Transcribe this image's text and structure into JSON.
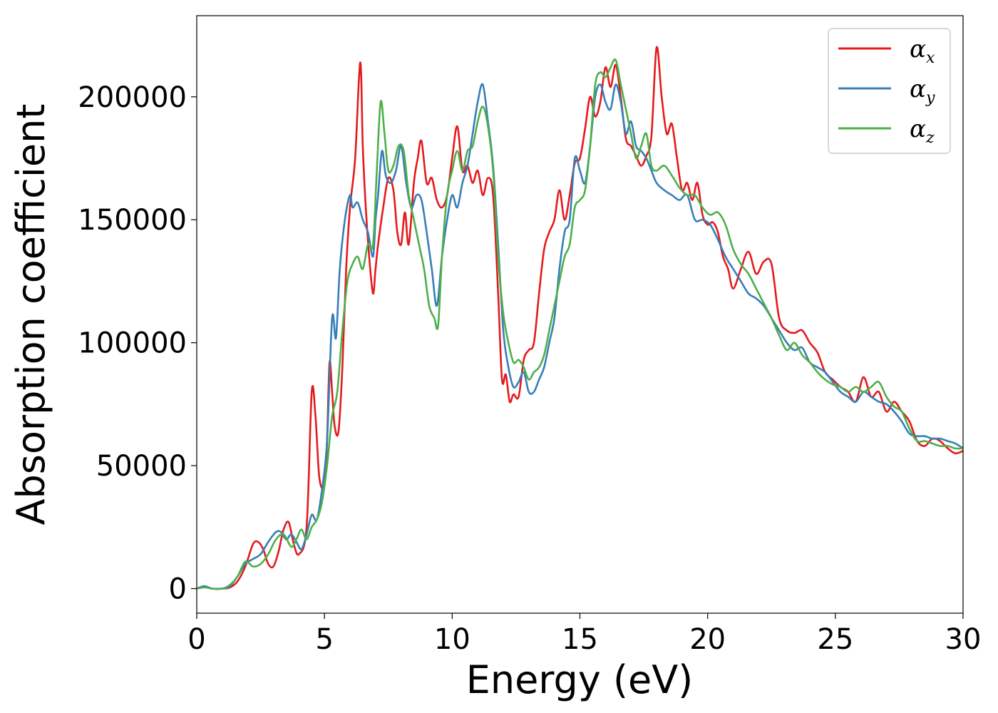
{
  "chart_data": {
    "type": "line",
    "xlabel": "Energy (eV)",
    "ylabel": "Absorption coefficient",
    "xlim": [
      0,
      30
    ],
    "ylim": [
      -10000,
      233000
    ],
    "xticks": [
      0,
      5,
      10,
      15,
      20,
      25,
      30
    ],
    "yticks": [
      0,
      50000,
      100000,
      150000,
      200000
    ],
    "grid": false,
    "legend_position": "top-right",
    "series": [
      {
        "name": "α",
        "subscript": "x",
        "color": "#e41a1c",
        "x": [
          0,
          0.3,
          0.6,
          1.0,
          1.3,
          1.6,
          1.9,
          2.2,
          2.4,
          2.6,
          2.8,
          3.0,
          3.2,
          3.4,
          3.6,
          3.8,
          4.0,
          4.3,
          4.5,
          4.65,
          4.8,
          5.0,
          5.1,
          5.2,
          5.3,
          5.4,
          5.55,
          5.7,
          5.85,
          6.0,
          6.2,
          6.4,
          6.5,
          6.6,
          6.75,
          6.9,
          7.0,
          7.1,
          7.3,
          7.5,
          7.7,
          7.85,
          8.0,
          8.15,
          8.3,
          8.5,
          8.65,
          8.8,
          9.0,
          9.2,
          9.4,
          9.6,
          9.8,
          10.0,
          10.2,
          10.4,
          10.6,
          10.8,
          11.0,
          11.2,
          11.4,
          11.6,
          11.8,
          11.95,
          12.1,
          12.25,
          12.4,
          12.6,
          12.8,
          13.0,
          13.2,
          13.4,
          13.6,
          13.8,
          14.0,
          14.2,
          14.4,
          14.6,
          14.8,
          15.0,
          15.2,
          15.4,
          15.6,
          15.8,
          16.0,
          16.2,
          16.4,
          16.6,
          16.8,
          17.0,
          17.2,
          17.4,
          17.6,
          17.8,
          18.0,
          18.2,
          18.4,
          18.6,
          18.8,
          19.0,
          19.2,
          19.4,
          19.6,
          19.8,
          20.0,
          20.2,
          20.4,
          20.6,
          20.8,
          21.0,
          21.3,
          21.6,
          21.9,
          22.2,
          22.5,
          22.8,
          23.1,
          23.4,
          23.7,
          24.0,
          24.3,
          24.6,
          24.9,
          25.2,
          25.5,
          25.8,
          26.1,
          26.4,
          26.7,
          27.0,
          27.3,
          27.6,
          27.9,
          28.2,
          28.5,
          28.8,
          29.1,
          29.4,
          29.7,
          30.0
        ],
        "values": [
          0,
          800,
          0,
          0,
          500,
          3000,
          9000,
          18000,
          19000,
          16000,
          10000,
          9000,
          15000,
          24000,
          27000,
          18000,
          14000,
          25000,
          80000,
          70000,
          45000,
          42000,
          60000,
          92000,
          80000,
          66000,
          64000,
          90000,
          130000,
          155000,
          175000,
          214000,
          180000,
          158000,
          135000,
          120000,
          130000,
          140000,
          155000,
          167000,
          162000,
          145000,
          140000,
          153000,
          140000,
          165000,
          175000,
          182000,
          165000,
          167000,
          158000,
          155000,
          160000,
          175000,
          188000,
          170000,
          172000,
          165000,
          170000,
          160000,
          167000,
          160000,
          120000,
          85000,
          87000,
          76000,
          79000,
          78000,
          93000,
          97000,
          100000,
          120000,
          138000,
          145000,
          150000,
          162000,
          150000,
          160000,
          173000,
          175000,
          187000,
          200000,
          192000,
          198000,
          212000,
          204000,
          213000,
          200000,
          183000,
          180000,
          176000,
          172000,
          176000,
          184000,
          220000,
          200000,
          185000,
          189000,
          175000,
          162000,
          165000,
          158000,
          165000,
          152000,
          148000,
          149000,
          145000,
          135000,
          130000,
          122000,
          130000,
          137000,
          128000,
          133000,
          132000,
          110000,
          105000,
          104000,
          105000,
          100000,
          96000,
          88000,
          85000,
          82000,
          80000,
          76000,
          86000,
          78000,
          80000,
          72000,
          76000,
          72000,
          68000,
          60000,
          58000,
          61000,
          60000,
          57000,
          55000,
          56000
        ]
      },
      {
        "name": "α",
        "subscript": "y",
        "color": "#377eb8",
        "x": [
          0,
          0.3,
          0.6,
          1.0,
          1.3,
          1.6,
          1.9,
          2.2,
          2.5,
          2.8,
          3.1,
          3.3,
          3.5,
          3.7,
          3.9,
          4.1,
          4.3,
          4.5,
          4.7,
          4.9,
          5.1,
          5.3,
          5.45,
          5.6,
          5.8,
          6.0,
          6.1,
          6.3,
          6.5,
          6.7,
          6.9,
          7.0,
          7.1,
          7.25,
          7.4,
          7.6,
          7.8,
          8.0,
          8.2,
          8.4,
          8.6,
          8.8,
          9.0,
          9.2,
          9.4,
          9.6,
          9.8,
          10.0,
          10.2,
          10.4,
          10.6,
          10.8,
          11.0,
          11.2,
          11.4,
          11.6,
          11.8,
          12.0,
          12.2,
          12.4,
          12.6,
          12.8,
          13.0,
          13.2,
          13.4,
          13.6,
          13.8,
          14.0,
          14.2,
          14.4,
          14.6,
          14.8,
          15.0,
          15.2,
          15.4,
          15.6,
          15.8,
          16.0,
          16.2,
          16.4,
          16.6,
          16.8,
          17.0,
          17.2,
          17.4,
          17.6,
          17.8,
          18.0,
          18.3,
          18.6,
          18.9,
          19.2,
          19.5,
          19.8,
          20.1,
          20.4,
          20.7,
          21.0,
          21.3,
          21.6,
          21.9,
          22.2,
          22.5,
          22.8,
          23.1,
          23.4,
          23.7,
          24.0,
          24.3,
          24.6,
          24.9,
          25.2,
          25.5,
          25.8,
          26.1,
          26.4,
          26.7,
          27.0,
          27.3,
          27.6,
          27.9,
          28.2,
          28.5,
          28.8,
          29.1,
          29.4,
          29.7,
          30.0
        ],
        "values": [
          0,
          1000,
          0,
          0,
          1000,
          5000,
          10000,
          12000,
          14000,
          19000,
          23000,
          23000,
          20000,
          22000,
          19000,
          16000,
          22000,
          30000,
          28000,
          40000,
          60000,
          110000,
          102000,
          130000,
          150000,
          160000,
          155000,
          157000,
          150000,
          145000,
          135000,
          150000,
          160000,
          178000,
          168000,
          165000,
          170000,
          180000,
          165000,
          155000,
          160000,
          158000,
          145000,
          130000,
          115000,
          135000,
          150000,
          160000,
          155000,
          165000,
          172000,
          185000,
          198000,
          205000,
          190000,
          172000,
          140000,
          105000,
          90000,
          82000,
          84000,
          88000,
          80000,
          80000,
          85000,
          90000,
          100000,
          110000,
          130000,
          145000,
          150000,
          175000,
          170000,
          165000,
          180000,
          200000,
          205000,
          198000,
          195000,
          205000,
          198000,
          185000,
          190000,
          180000,
          178000,
          175000,
          170000,
          165000,
          162000,
          160000,
          158000,
          160000,
          150000,
          150000,
          148000,
          142000,
          135000,
          130000,
          125000,
          120000,
          118000,
          115000,
          110000,
          105000,
          100000,
          97000,
          98000,
          92000,
          90000,
          88000,
          84000,
          80000,
          78000,
          76000,
          80000,
          78000,
          76000,
          75000,
          72000,
          68000,
          63000,
          62000,
          62000,
          61000,
          61000,
          60000,
          59000,
          57000
        ]
      },
      {
        "name": "α",
        "subscript": "z",
        "color": "#4daf4a",
        "x": [
          0,
          0.3,
          0.6,
          1.0,
          1.3,
          1.6,
          1.9,
          2.2,
          2.5,
          2.8,
          3.1,
          3.4,
          3.7,
          3.9,
          4.1,
          4.3,
          4.5,
          4.7,
          4.9,
          5.1,
          5.3,
          5.5,
          5.7,
          5.9,
          6.1,
          6.3,
          6.5,
          6.7,
          6.9,
          7.05,
          7.2,
          7.35,
          7.5,
          7.7,
          7.9,
          8.1,
          8.3,
          8.5,
          8.7,
          8.9,
          9.1,
          9.3,
          9.45,
          9.6,
          9.8,
          10.0,
          10.2,
          10.4,
          10.6,
          10.8,
          11.0,
          11.2,
          11.4,
          11.6,
          11.8,
          12.0,
          12.2,
          12.4,
          12.6,
          12.8,
          13.0,
          13.2,
          13.4,
          13.6,
          13.8,
          14.0,
          14.2,
          14.4,
          14.6,
          14.8,
          15.0,
          15.2,
          15.4,
          15.6,
          15.8,
          16.0,
          16.2,
          16.4,
          16.6,
          16.8,
          17.0,
          17.2,
          17.4,
          17.6,
          17.8,
          18.0,
          18.3,
          18.6,
          18.9,
          19.2,
          19.5,
          19.8,
          20.1,
          20.4,
          20.7,
          21.0,
          21.3,
          21.6,
          21.9,
          22.2,
          22.5,
          22.8,
          23.1,
          23.4,
          23.7,
          24.0,
          24.3,
          24.6,
          24.9,
          25.2,
          25.5,
          25.8,
          26.1,
          26.4,
          26.7,
          27.0,
          27.3,
          27.6,
          27.9,
          28.2,
          28.5,
          28.8,
          29.1,
          29.4,
          29.7,
          30.0
        ],
        "values": [
          0,
          500,
          0,
          0,
          1500,
          5000,
          11000,
          9000,
          10000,
          14000,
          20000,
          22000,
          17000,
          20000,
          24000,
          20000,
          25000,
          28000,
          35000,
          50000,
          70000,
          80000,
          105000,
          125000,
          132000,
          135000,
          130000,
          140000,
          140000,
          170000,
          198000,
          185000,
          170000,
          172000,
          180000,
          178000,
          160000,
          150000,
          140000,
          130000,
          115000,
          110000,
          107000,
          135000,
          160000,
          170000,
          178000,
          170000,
          178000,
          180000,
          190000,
          196000,
          188000,
          170000,
          135000,
          112000,
          100000,
          92000,
          93000,
          90000,
          85000,
          88000,
          90000,
          95000,
          105000,
          115000,
          125000,
          135000,
          140000,
          155000,
          158000,
          162000,
          180000,
          205000,
          210000,
          208000,
          212000,
          215000,
          205000,
          195000,
          185000,
          175000,
          180000,
          185000,
          172000,
          170000,
          172000,
          168000,
          163000,
          160000,
          160000,
          155000,
          152000,
          153000,
          148000,
          138000,
          132000,
          128000,
          122000,
          116000,
          110000,
          103000,
          97000,
          100000,
          95000,
          92000,
          88000,
          85000,
          83000,
          82000,
          80000,
          82000,
          80000,
          82000,
          84000,
          78000,
          74000,
          72000,
          65000,
          60000,
          60000,
          59000,
          58000,
          58000,
          57000,
          57000
        ]
      }
    ]
  }
}
